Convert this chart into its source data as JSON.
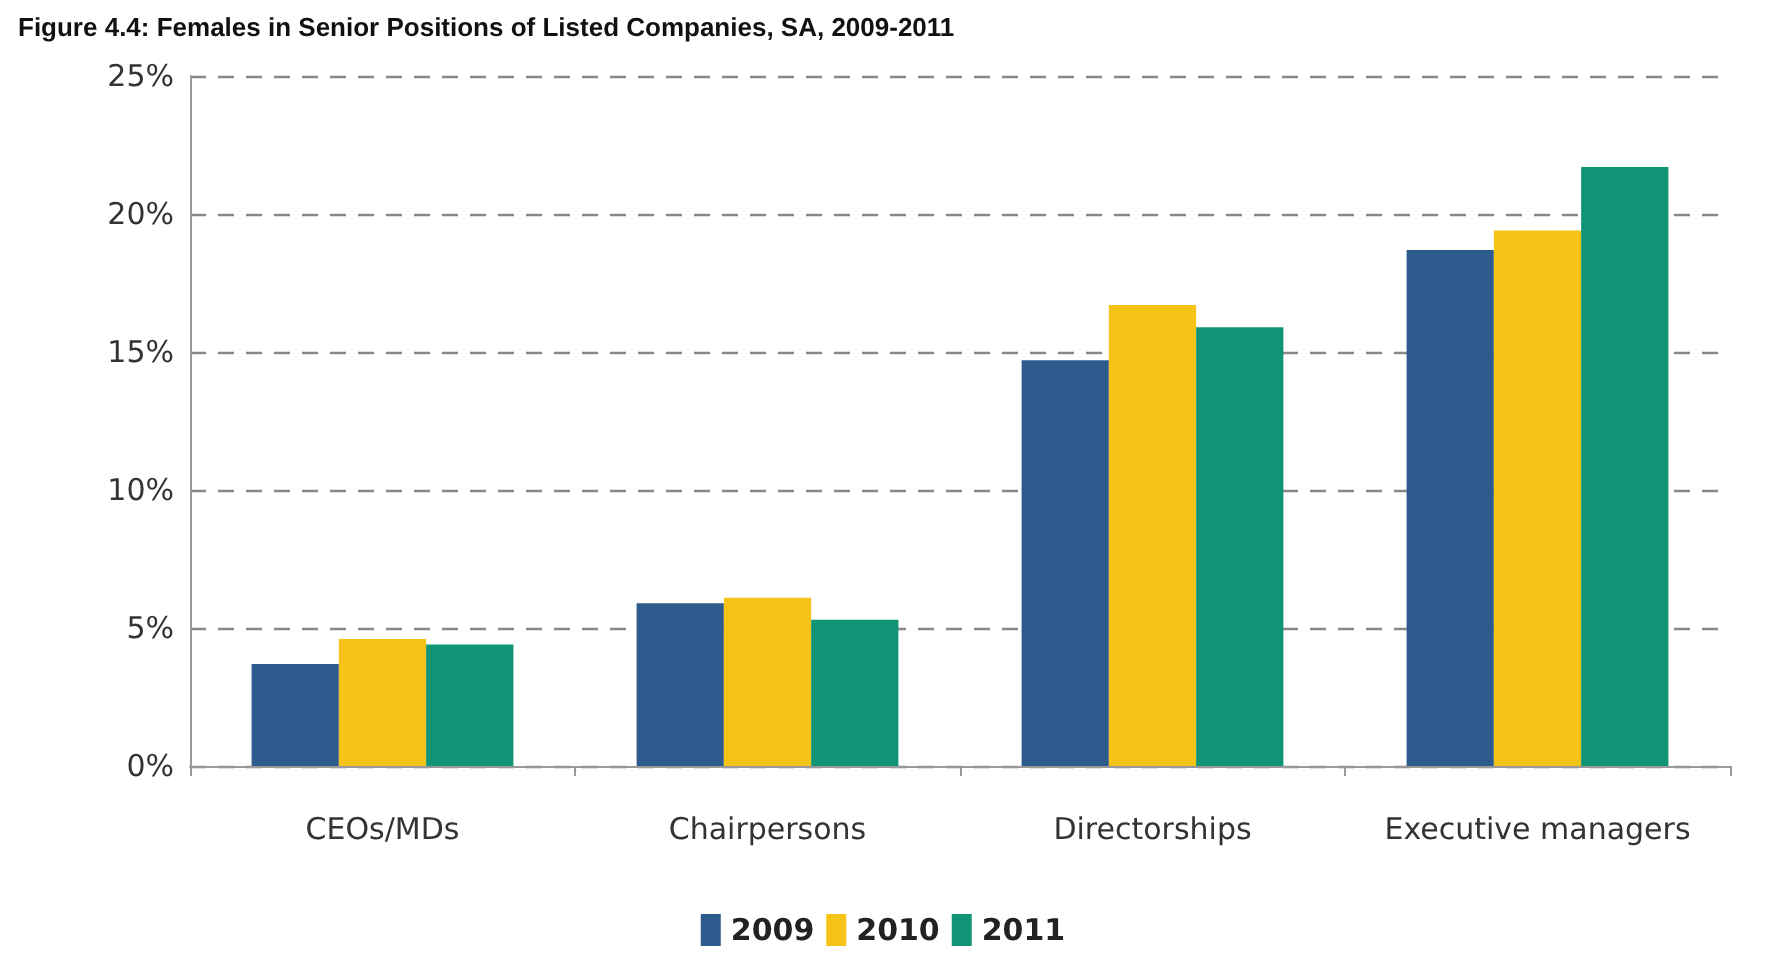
{
  "chart_data": {
    "type": "bar",
    "title": "Figure 4.4: Females in Senior Positions of Listed Companies, SA, 2009-2011",
    "categories": [
      "CEOs/MDs",
      "Chairpersons",
      "Directorships",
      "Executive managers"
    ],
    "series": [
      {
        "name": "2009",
        "color": "#2e5b8e",
        "values": [
          3.7,
          5.9,
          14.7,
          18.7
        ]
      },
      {
        "name": "2010",
        "color": "#f6c416",
        "values": [
          4.6,
          6.1,
          16.7,
          19.4
        ]
      },
      {
        "name": "2011",
        "color": "#0f9575",
        "values": [
          4.4,
          5.3,
          15.9,
          21.7
        ]
      }
    ],
    "ylim": [
      0,
      25
    ],
    "yticks": [
      {
        "value": 0,
        "label": "0%"
      },
      {
        "value": 5,
        "label": "5%"
      },
      {
        "value": 10,
        "label": "10%"
      },
      {
        "value": 15,
        "label": "15%"
      },
      {
        "value": 20,
        "label": "20%"
      },
      {
        "value": 25,
        "label": "25%"
      }
    ],
    "grid": "y",
    "legend": "bottom"
  }
}
